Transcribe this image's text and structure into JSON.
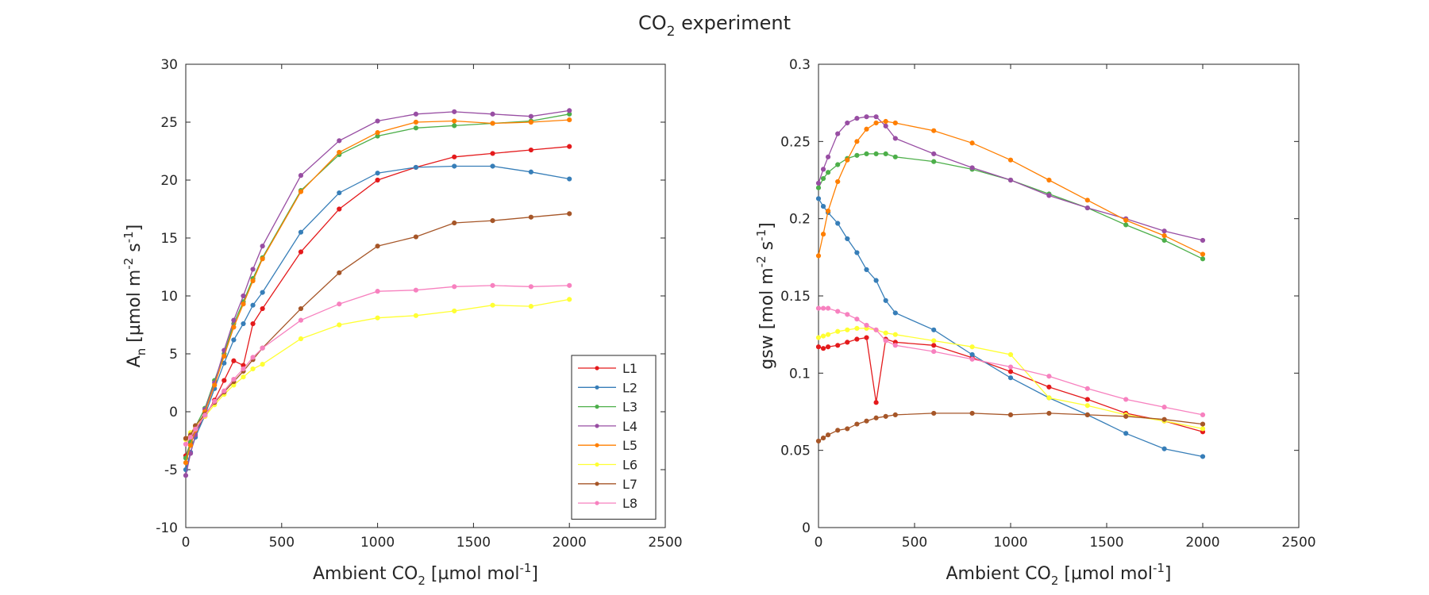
{
  "figure": {
    "title_main": "CO",
    "title_sub": "2",
    "title_rest": " experiment"
  },
  "colors": {
    "L1": "#e41a1c",
    "L2": "#377eb8",
    "L3": "#4daf4a",
    "L4": "#984ea3",
    "L5": "#ff7f00",
    "L6": "#ffff33",
    "L7": "#a65628",
    "L8": "#f781bf"
  },
  "chart_data": [
    {
      "type": "line",
      "xlabel": "Ambient CO2 [µmol mol-1]",
      "ylabel": "An [µmol m-2 s-1]",
      "xlim": [
        0,
        2500
      ],
      "ylim": [
        -10,
        30
      ],
      "xticks": [
        "0",
        "500",
        "1000",
        "1500",
        "2000",
        "2500"
      ],
      "yticks": [
        "-10",
        "-5",
        "0",
        "5",
        "10",
        "15",
        "20",
        "25",
        "30"
      ],
      "grid": false,
      "legend": "bottom-right",
      "x": [
        0,
        25,
        50,
        100,
        150,
        200,
        250,
        300,
        350,
        400,
        600,
        800,
        1000,
        1200,
        1400,
        1600,
        1800,
        2000
      ],
      "series": [
        {
          "name": "L1",
          "values": [
            -3.8,
            -2.7,
            -1.8,
            -0.4,
            1.0,
            2.7,
            4.4,
            4.0,
            7.6,
            8.9,
            13.8,
            17.5,
            20.0,
            21.1,
            22.0,
            22.3,
            22.6,
            22.9
          ]
        },
        {
          "name": "L2",
          "values": [
            -5.0,
            -3.5,
            -2.2,
            -0.3,
            2.0,
            4.2,
            6.2,
            7.6,
            9.2,
            10.3,
            15.5,
            18.9,
            20.6,
            21.1,
            21.2,
            21.2,
            20.7,
            20.1
          ]
        },
        {
          "name": "L3",
          "values": [
            -4.0,
            -2.6,
            -1.3,
            0.3,
            2.7,
            5.0,
            7.6,
            9.5,
            11.5,
            13.3,
            19.1,
            22.2,
            23.8,
            24.5,
            24.7,
            24.9,
            25.1,
            25.7
          ]
        },
        {
          "name": "L4",
          "values": [
            -5.5,
            -3.6,
            -2.0,
            0.2,
            2.5,
            5.3,
            7.9,
            10.0,
            12.3,
            14.3,
            20.4,
            23.4,
            25.1,
            25.7,
            25.9,
            25.7,
            25.5,
            26.0
          ]
        },
        {
          "name": "L5",
          "values": [
            -4.4,
            -2.9,
            -1.6,
            0.0,
            2.3,
            4.8,
            7.3,
            9.3,
            11.3,
            13.2,
            19.0,
            22.4,
            24.1,
            25.0,
            25.1,
            24.9,
            25.0,
            25.2
          ]
        },
        {
          "name": "L6",
          "values": [
            -2.4,
            -1.8,
            -1.3,
            -0.4,
            0.6,
            1.5,
            2.3,
            3.0,
            3.7,
            4.1,
            6.3,
            7.5,
            8.1,
            8.3,
            8.7,
            9.2,
            9.1,
            9.7
          ]
        },
        {
          "name": "L7",
          "values": [
            -2.3,
            -2.0,
            -1.2,
            -0.2,
            0.8,
            1.7,
            2.6,
            3.5,
            4.5,
            5.5,
            8.9,
            12.0,
            14.3,
            15.1,
            16.3,
            16.5,
            16.8,
            17.1
          ]
        },
        {
          "name": "L8",
          "values": [
            -2.8,
            -2.2,
            -1.5,
            -0.3,
            0.9,
            1.8,
            2.8,
            3.7,
            4.7,
            5.5,
            7.9,
            9.3,
            10.4,
            10.5,
            10.8,
            10.9,
            10.8,
            10.9
          ]
        }
      ]
    },
    {
      "type": "line",
      "xlabel": "Ambient CO2 [µmol mol-1]",
      "ylabel": "gsw [mol m-2 s-1]",
      "xlim": [
        0,
        2500
      ],
      "ylim": [
        0,
        0.3
      ],
      "xticks": [
        "0",
        "500",
        "1000",
        "1500",
        "2000",
        "2500"
      ],
      "yticks": [
        "0",
        "0.05",
        "0.1",
        "0.15",
        "0.2",
        "0.25",
        "0.3"
      ],
      "grid": false,
      "x": [
        0,
        25,
        50,
        100,
        150,
        200,
        250,
        300,
        350,
        400,
        600,
        800,
        1000,
        1200,
        1400,
        1600,
        1800,
        2000
      ],
      "series": [
        {
          "name": "L1",
          "values": [
            0.117,
            0.116,
            0.117,
            0.118,
            0.12,
            0.122,
            0.123,
            0.081,
            0.122,
            0.12,
            0.118,
            0.11,
            0.101,
            0.091,
            0.083,
            0.074,
            0.069,
            0.062
          ]
        },
        {
          "name": "L2",
          "values": [
            0.213,
            0.208,
            0.204,
            0.197,
            0.187,
            0.178,
            0.167,
            0.16,
            0.147,
            0.139,
            0.128,
            0.112,
            0.097,
            0.084,
            0.073,
            0.061,
            0.051,
            0.046
          ]
        },
        {
          "name": "L3",
          "values": [
            0.22,
            0.226,
            0.23,
            0.235,
            0.239,
            0.241,
            0.242,
            0.242,
            0.242,
            0.24,
            0.237,
            0.232,
            0.225,
            0.216,
            0.207,
            0.196,
            0.186,
            0.174
          ]
        },
        {
          "name": "L4",
          "values": [
            0.223,
            0.232,
            0.24,
            0.255,
            0.262,
            0.265,
            0.266,
            0.266,
            0.26,
            0.252,
            0.242,
            0.233,
            0.225,
            0.215,
            0.207,
            0.2,
            0.192,
            0.186
          ]
        },
        {
          "name": "L5",
          "values": [
            0.176,
            0.19,
            0.205,
            0.224,
            0.238,
            0.25,
            0.258,
            0.262,
            0.263,
            0.262,
            0.257,
            0.249,
            0.238,
            0.225,
            0.212,
            0.199,
            0.189,
            0.177
          ]
        },
        {
          "name": "L6",
          "values": [
            0.123,
            0.124,
            0.125,
            0.127,
            0.128,
            0.129,
            0.129,
            0.128,
            0.126,
            0.125,
            0.121,
            0.117,
            0.112,
            0.084,
            0.079,
            0.073,
            0.069,
            0.064
          ]
        },
        {
          "name": "L7",
          "values": [
            0.056,
            0.058,
            0.06,
            0.063,
            0.064,
            0.067,
            0.069,
            0.071,
            0.072,
            0.073,
            0.074,
            0.074,
            0.073,
            0.074,
            0.073,
            0.072,
            0.07,
            0.067
          ]
        },
        {
          "name": "L8",
          "values": [
            0.142,
            0.142,
            0.142,
            0.14,
            0.138,
            0.135,
            0.131,
            0.128,
            0.121,
            0.118,
            0.114,
            0.109,
            0.104,
            0.098,
            0.09,
            0.083,
            0.078,
            0.073
          ]
        }
      ]
    }
  ]
}
